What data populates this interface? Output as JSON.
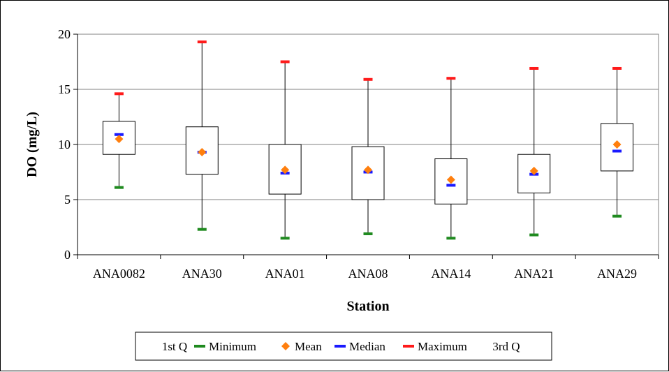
{
  "chart_data": {
    "type": "box",
    "title": "",
    "xlabel": "Station",
    "ylabel": "DO (mg/L)",
    "ylim": [
      0,
      20
    ],
    "yticks": [
      "0",
      "5",
      "10",
      "15",
      "20"
    ],
    "grid": true,
    "legend_position": "bottom",
    "categories": [
      "ANA0082",
      "ANA30",
      "ANA01",
      "ANA08",
      "ANA14",
      "ANA21",
      "ANA29"
    ],
    "series": [
      {
        "name": "1st Q",
        "values": [
          9.1,
          7.3,
          5.5,
          5.0,
          4.6,
          5.6,
          7.6
        ]
      },
      {
        "name": "Minimum",
        "values": [
          6.1,
          2.3,
          1.5,
          1.9,
          1.5,
          1.8,
          3.5
        ],
        "color": "#1f8a1f"
      },
      {
        "name": "Mean",
        "values": [
          10.5,
          9.3,
          7.7,
          7.7,
          6.8,
          7.6,
          10.0
        ],
        "color": "#ff7f0e"
      },
      {
        "name": "Median",
        "values": [
          10.9,
          9.3,
          7.4,
          7.5,
          6.3,
          7.3,
          9.4
        ],
        "color": "#1a1aff"
      },
      {
        "name": "Maximum",
        "values": [
          14.6,
          19.3,
          17.5,
          15.9,
          16.0,
          16.9,
          16.9
        ],
        "color": "#ff1a1a"
      },
      {
        "name": "3rd Q",
        "values": [
          12.1,
          11.6,
          10.0,
          9.8,
          8.7,
          9.1,
          11.9
        ]
      }
    ]
  }
}
